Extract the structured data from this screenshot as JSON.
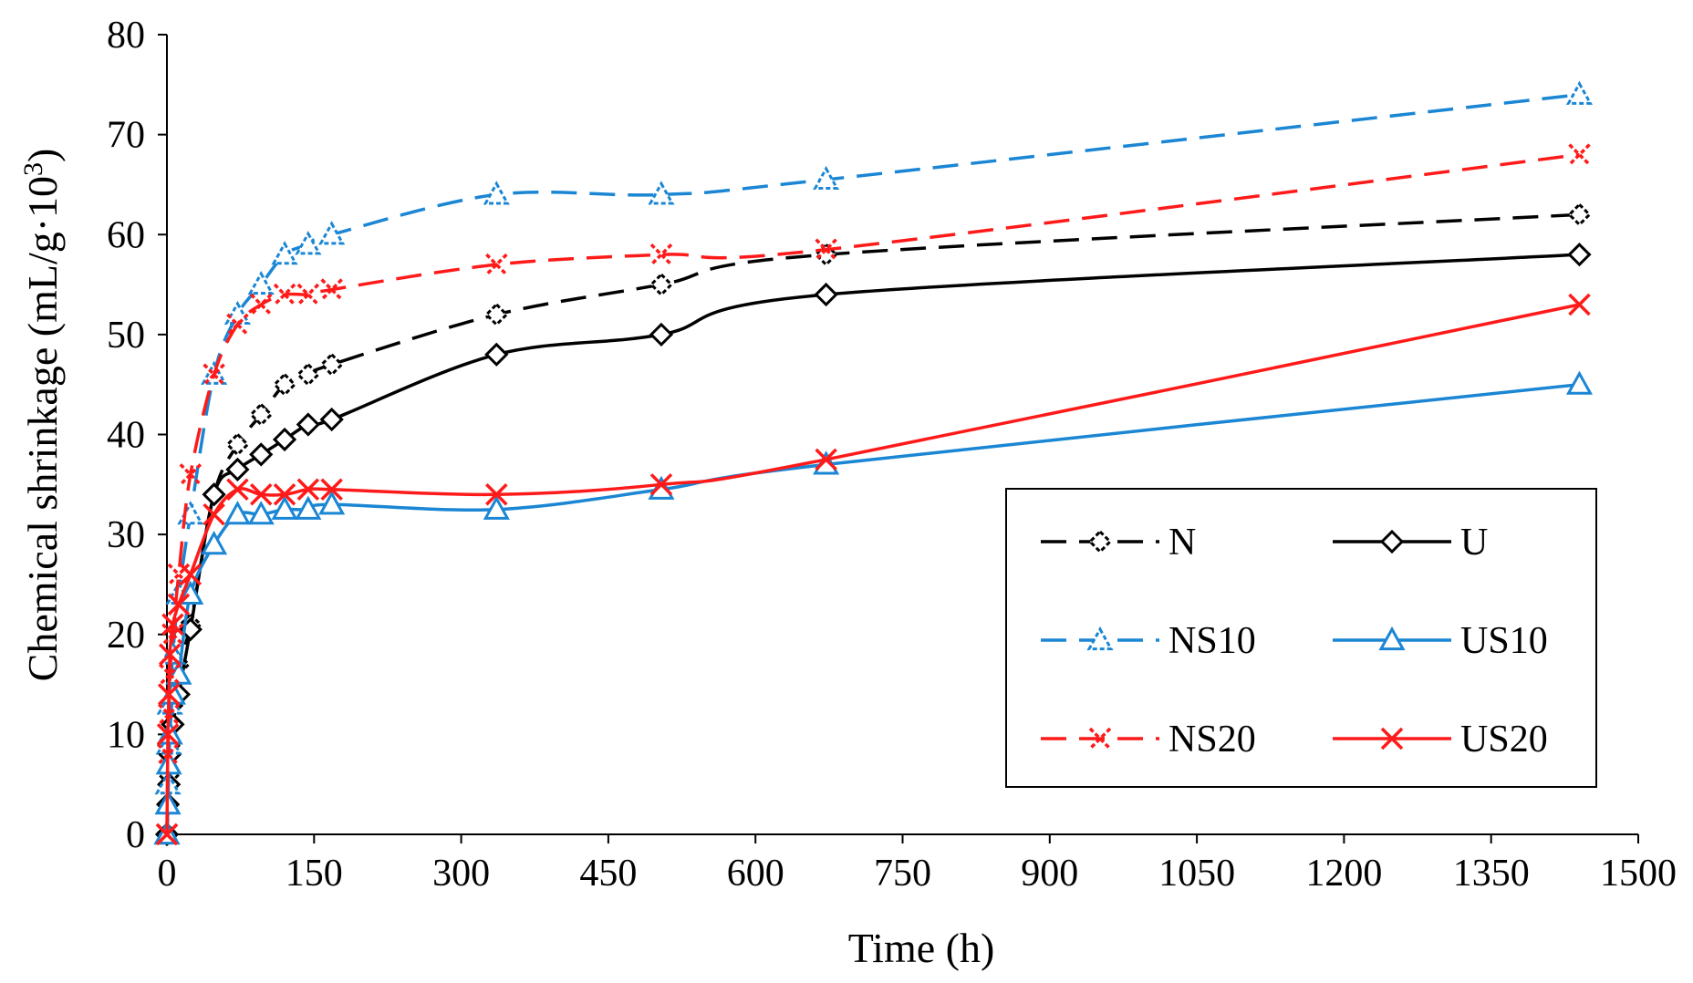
{
  "chart_data": {
    "type": "line",
    "title": "",
    "xlabel": "Time (h)",
    "ylabel": "Chemical shrinkage (mL/g·10",
    "ylabel_superscript": "3",
    "ylabel_close": ")",
    "xlim": [
      0,
      1500
    ],
    "ylim": [
      0,
      80
    ],
    "x_ticks": [
      0,
      150,
      300,
      450,
      600,
      750,
      900,
      1050,
      1200,
      1350,
      1500
    ],
    "y_ticks": [
      0,
      10,
      20,
      30,
      40,
      50,
      60,
      70,
      80
    ],
    "grid": false,
    "legend_position": "bottom-right",
    "series": [
      {
        "name": "N",
        "color": "#000000",
        "dashed": true,
        "marker": "diamond",
        "x": [
          0,
          1,
          2,
          3,
          6,
          12,
          24,
          48,
          72,
          96,
          120,
          144,
          168,
          336,
          504,
          672,
          1440
        ],
        "y": [
          0,
          3,
          6,
          9,
          13,
          17,
          21,
          34,
          39,
          42,
          45,
          46,
          47,
          52,
          55,
          58,
          62
        ]
      },
      {
        "name": "U",
        "color": "#000000",
        "dashed": false,
        "marker": "diamond",
        "x": [
          0,
          1,
          2,
          3,
          6,
          12,
          24,
          48,
          72,
          96,
          120,
          144,
          168,
          336,
          504,
          672,
          1440
        ],
        "y": [
          0,
          3,
          5,
          8,
          11,
          14,
          20.5,
          34,
          36.5,
          38,
          39.5,
          41,
          41.5,
          48,
          50,
          54,
          58
        ]
      },
      {
        "name": "NS10",
        "color": "#1a86d4",
        "dashed": true,
        "marker": "triangle",
        "x": [
          0,
          1,
          2,
          3,
          6,
          12,
          24,
          48,
          72,
          96,
          120,
          144,
          168,
          336,
          504,
          672,
          1440
        ],
        "y": [
          0,
          5,
          9,
          13,
          18,
          24,
          32,
          46,
          52,
          55,
          58,
          59,
          60,
          64,
          64,
          65.5,
          74
        ]
      },
      {
        "name": "US10",
        "color": "#1a86d4",
        "dashed": false,
        "marker": "triangle",
        "x": [
          0,
          1,
          2,
          3,
          6,
          12,
          24,
          48,
          72,
          96,
          120,
          144,
          168,
          336,
          504,
          672,
          1440
        ],
        "y": [
          0,
          3,
          7,
          10,
          14,
          16,
          24,
          29,
          32,
          32,
          32.5,
          32.5,
          33,
          32.5,
          34.5,
          37,
          45
        ]
      },
      {
        "name": "NS20",
        "color": "#ff1a1a",
        "dashed": true,
        "marker": "x",
        "x": [
          0,
          1,
          2,
          3,
          6,
          12,
          24,
          48,
          72,
          96,
          120,
          144,
          168,
          336,
          504,
          672,
          1440
        ],
        "y": [
          0,
          8,
          12,
          16,
          20,
          26,
          36,
          46,
          51,
          53,
          54,
          54,
          54.5,
          57,
          58,
          58.5,
          68
        ]
      },
      {
        "name": "US20",
        "color": "#ff1a1a",
        "dashed": false,
        "marker": "x",
        "x": [
          0,
          1,
          2,
          3,
          6,
          12,
          24,
          48,
          72,
          96,
          120,
          144,
          168,
          336,
          504,
          672,
          1440
        ],
        "y": [
          0,
          10,
          14,
          18,
          21,
          23,
          26,
          32,
          34.5,
          34,
          34,
          34.5,
          34.5,
          34,
          35,
          37.5,
          53
        ]
      }
    ]
  }
}
